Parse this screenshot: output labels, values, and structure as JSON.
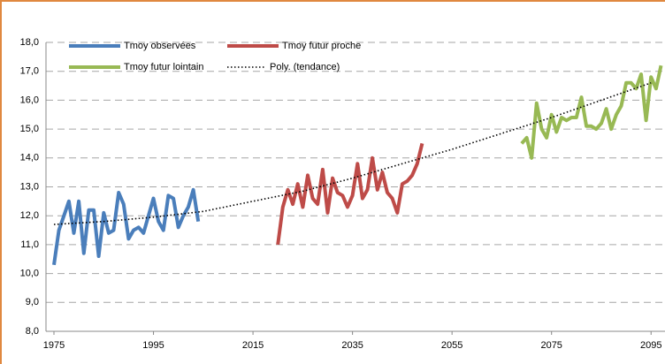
{
  "chart_data": {
    "type": "line",
    "series": [
      {
        "name": "Tmoy observées",
        "color": "#4a7ebb",
        "style": "solid",
        "x": [
          1975,
          1976,
          1977,
          1978,
          1979,
          1980,
          1981,
          1982,
          1983,
          1984,
          1985,
          1986,
          1987,
          1988,
          1989,
          1990,
          1991,
          1992,
          1993,
          1994,
          1995,
          1996,
          1997,
          1998,
          1999,
          2000,
          2001,
          2002,
          2003,
          2004
        ],
        "values": [
          10.3,
          11.5,
          12.0,
          12.5,
          11.4,
          12.5,
          10.7,
          12.2,
          12.2,
          10.6,
          12.1,
          11.4,
          11.5,
          12.8,
          12.4,
          11.2,
          11.5,
          11.6,
          11.4,
          12.0,
          12.6,
          11.8,
          11.5,
          12.7,
          12.6,
          11.6,
          12.0,
          12.3,
          12.9,
          11.8
        ]
      },
      {
        "name": "Tmoy futur proche",
        "color": "#be4b48",
        "style": "solid",
        "x": [
          2020,
          2021,
          2022,
          2023,
          2024,
          2025,
          2026,
          2027,
          2028,
          2029,
          2030,
          2031,
          2032,
          2033,
          2034,
          2035,
          2036,
          2037,
          2038,
          2039,
          2040,
          2041,
          2042,
          2043,
          2044,
          2045,
          2046,
          2047,
          2048,
          2049
        ],
        "values": [
          11.0,
          12.3,
          12.9,
          12.4,
          13.1,
          12.3,
          13.4,
          12.6,
          12.4,
          13.6,
          12.1,
          13.3,
          12.8,
          12.7,
          12.3,
          12.7,
          13.8,
          12.6,
          12.9,
          14.0,
          12.9,
          13.5,
          12.8,
          12.6,
          12.1,
          13.1,
          13.2,
          13.4,
          13.8,
          14.5
        ]
      },
      {
        "name": "Tmoy futur lointain",
        "color": "#98b954",
        "style": "solid",
        "x": [
          2069,
          2070,
          2071,
          2072,
          2073,
          2074,
          2075,
          2076,
          2077,
          2078,
          2079,
          2080,
          2081,
          2082,
          2083,
          2084,
          2085,
          2086,
          2087,
          2088,
          2089,
          2090,
          2091,
          2092,
          2093,
          2094,
          2095,
          2096,
          2097
        ],
        "values": [
          14.5,
          14.7,
          14.0,
          15.9,
          15.0,
          14.7,
          15.5,
          14.9,
          15.4,
          15.3,
          15.4,
          15.4,
          16.1,
          15.1,
          15.1,
          15.0,
          15.2,
          15.7,
          15.0,
          15.5,
          15.8,
          16.6,
          16.6,
          16.4,
          16.9,
          15.3,
          16.8,
          16.4,
          17.2
        ]
      },
      {
        "name": "Poly. (tendance)",
        "color": "#000000",
        "style": "dotted",
        "x": [
          1975,
          1985,
          1995,
          2005,
          2015,
          2025,
          2035,
          2045,
          2055,
          2065,
          2075,
          2085,
          2095
        ],
        "values": [
          11.7,
          11.8,
          11.95,
          12.15,
          12.5,
          12.85,
          13.3,
          13.8,
          14.3,
          14.85,
          15.4,
          16.0,
          16.6
        ]
      }
    ],
    "xlim": [
      1973.4,
      2097.8
    ],
    "xticks": [
      1975,
      1995,
      2015,
      2035,
      2055,
      2075,
      2095
    ],
    "ylim": [
      8,
      18
    ],
    "yticks": [
      {
        "value": 8,
        "label": "8,0"
      },
      {
        "value": 9,
        "label": "9,0"
      },
      {
        "value": 10,
        "label": "10,0"
      },
      {
        "value": 11,
        "label": "11,0"
      },
      {
        "value": 12,
        "label": "12,0"
      },
      {
        "value": 13,
        "label": "13,0"
      },
      {
        "value": 14,
        "label": "14,0"
      },
      {
        "value": 15,
        "label": "15,0"
      },
      {
        "value": 16,
        "label": "16,0"
      },
      {
        "value": 17,
        "label": "17,0"
      },
      {
        "value": 18,
        "label": "18,0"
      }
    ],
    "grid": true,
    "legend": "top-left"
  }
}
